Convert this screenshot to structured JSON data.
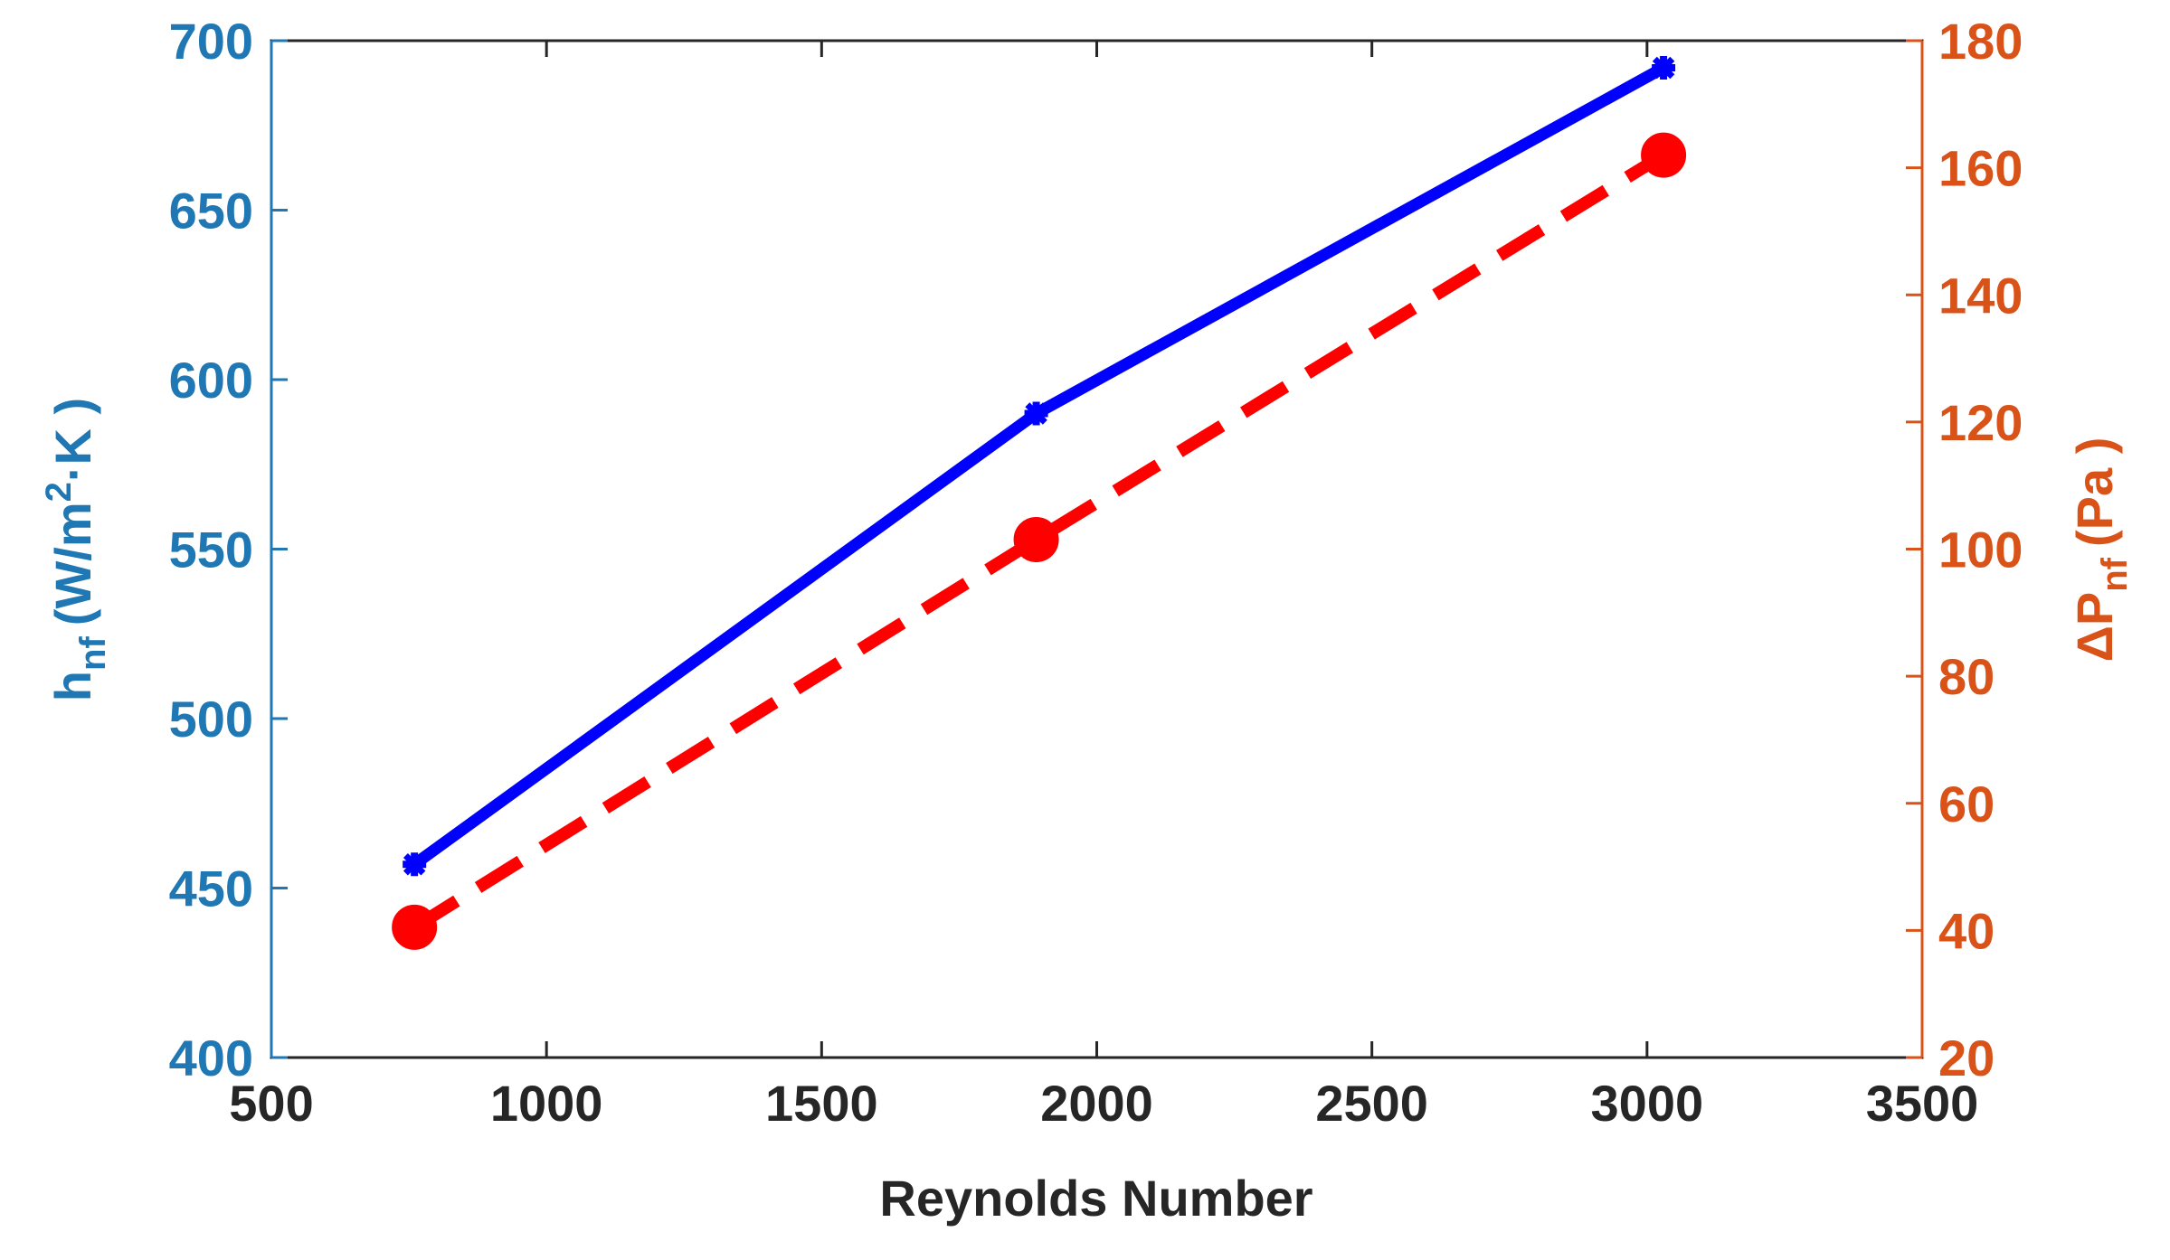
{
  "chart_data": {
    "type": "line",
    "xlabel": "Reynolds Number",
    "x_ticks": [
      "500",
      "1000",
      "1500",
      "2000",
      "2500",
      "3000",
      "3500"
    ],
    "xlim": [
      500,
      3500
    ],
    "left_axis": {
      "label_main": "h",
      "label_sub": "nf",
      "label_unit": "(W/m",
      "label_sup": "2",
      "label_tail": "·K )",
      "ticks": [
        "400",
        "450",
        "500",
        "550",
        "600",
        "650",
        "700"
      ],
      "ylim": [
        400,
        700
      ],
      "color": "#1f77b4"
    },
    "right_axis": {
      "label_main": "ΔP",
      "label_sub": "nf",
      "label_unit": "(Pa )",
      "ticks": [
        "20",
        "40",
        "60",
        "80",
        "100",
        "120",
        "140",
        "160",
        "180"
      ],
      "ylim": [
        20,
        180
      ],
      "color": "#d95319"
    },
    "series": [
      {
        "axis": "left",
        "x": [
          760,
          1890,
          3030
        ],
        "y": [
          457,
          590,
          692
        ],
        "color": "#0000ff",
        "style": "solid",
        "marker": "star"
      },
      {
        "axis": "right",
        "x": [
          760,
          1890,
          3030
        ],
        "y": [
          40.5,
          101.5,
          162
        ],
        "color": "#ff0000",
        "style": "dashed",
        "marker": "circle"
      }
    ],
    "grid": false,
    "legend": "none"
  }
}
